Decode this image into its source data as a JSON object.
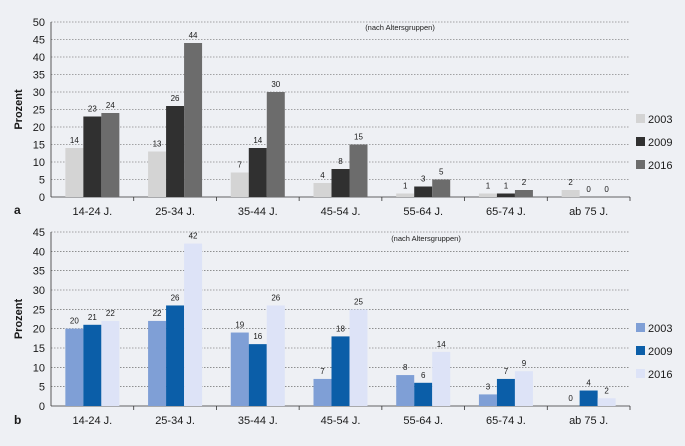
{
  "chart_data": [
    {
      "type": "bar",
      "panel_label": "a",
      "ylabel": "Prozent",
      "annotation": "(nach Altersgruppen)",
      "ylim": [
        0,
        50
      ],
      "yticks": [
        0,
        5,
        10,
        15,
        20,
        25,
        30,
        35,
        40,
        45,
        50
      ],
      "grid": true,
      "legend_position": "right",
      "categories": [
        "14-24 J.",
        "25-34 J.",
        "35-44 J.",
        "45-54 J.",
        "55-64 J.",
        "65-74 J.",
        "ab 75 J."
      ],
      "series": [
        {
          "name": "2003",
          "color": "#d4d4d4",
          "values": [
            14,
            13,
            7,
            4,
            1,
            1,
            2
          ]
        },
        {
          "name": "2009",
          "color": "#303030",
          "values": [
            23,
            26,
            14,
            8,
            3,
            1,
            0
          ]
        },
        {
          "name": "2016",
          "color": "#6c6c6c",
          "values": [
            24,
            44,
            30,
            15,
            5,
            2,
            0
          ]
        }
      ]
    },
    {
      "type": "bar",
      "panel_label": "b",
      "ylabel": "Prozent",
      "annotation": "(nach Altersgruppen)",
      "ylim": [
        0,
        45
      ],
      "yticks": [
        0,
        5,
        10,
        15,
        20,
        25,
        30,
        35,
        40,
        45
      ],
      "grid": true,
      "legend_position": "right",
      "categories": [
        "14-24 J.",
        "25-34 J.",
        "35-44 J.",
        "45-54 J.",
        "55-64 J.",
        "65-74 J.",
        "ab 75 J."
      ],
      "series": [
        {
          "name": "2003",
          "color": "#7f9fd6",
          "values": [
            20,
            22,
            19,
            7,
            8,
            3,
            0
          ]
        },
        {
          "name": "2009",
          "color": "#0b5ea8",
          "values": [
            21,
            26,
            16,
            18,
            6,
            7,
            4
          ]
        },
        {
          "name": "2016",
          "color": "#dde3f7",
          "values": [
            22,
            42,
            26,
            25,
            14,
            9,
            2
          ]
        }
      ]
    }
  ]
}
